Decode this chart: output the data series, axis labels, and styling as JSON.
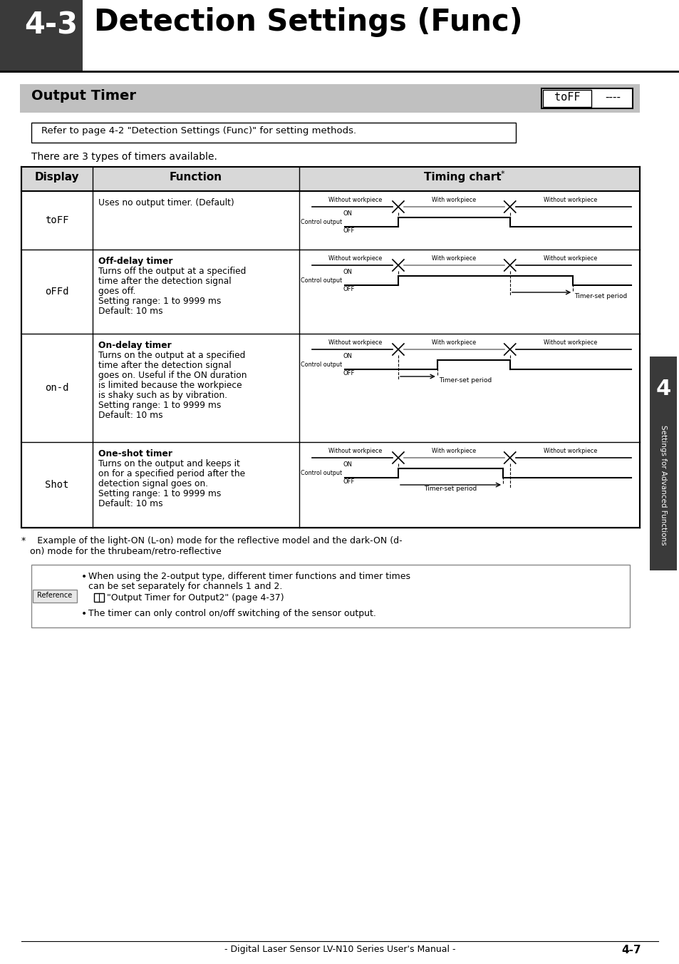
{
  "title_num": "4-3",
  "title_text": "Detection Settings (Func)",
  "section_title": "Output Timer",
  "refer_text": "Refer to page 4-2 \"Detection Settings (Func)\" for setting methods.",
  "intro_text": "There are 3 types of timers available.",
  "rows": [
    {
      "display": "toFF",
      "function_lines": [
        "Uses no output timer. (Default)"
      ],
      "chart_type": "toff"
    },
    {
      "display": "oFFd",
      "function_lines": [
        "Off-delay timer",
        "Turns off the output at a specified",
        "time after the detection signal",
        "goes off.",
        "Setting range: 1 to 9999 ms",
        "Default: 10 ms"
      ],
      "chart_type": "offd"
    },
    {
      "display": "on-d",
      "function_lines": [
        "On-delay timer",
        "Turns on the output at a specified",
        "time after the detection signal",
        "goes on. Useful if the ON duration",
        "is limited because the workpiece",
        "is shaky such as by vibration.",
        "Setting range: 1 to 9999 ms",
        "Default: 10 ms"
      ],
      "chart_type": "ond"
    },
    {
      "display": "Shot",
      "function_lines": [
        "One-shot timer",
        "Turns on the output and keeps it",
        "on for a specified period after the",
        "detection signal goes on.",
        "Setting range: 1 to 9999 ms",
        "Default: 10 ms"
      ],
      "chart_type": "shot"
    }
  ],
  "page_footer": "- Digital Laser Sensor LV-N10 Series User's Manual -",
  "page_num": "4-7",
  "bg_color": "#ffffff",
  "header_bg": "#3a3a3a",
  "section_bg": "#c0c0c0",
  "table_header_bg": "#d8d8d8"
}
